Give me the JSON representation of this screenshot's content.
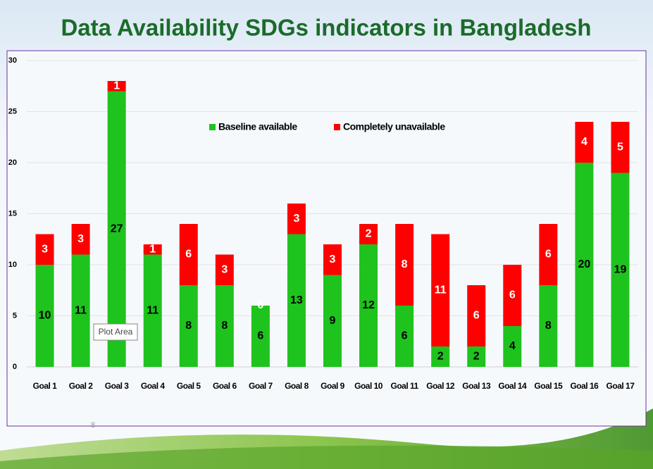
{
  "chart_data": {
    "type": "stacked_bar",
    "title": "Data Availability SDGs indicators in Bangladesh",
    "categories": [
      "Goal 1",
      "Goal 2",
      "Goal 3",
      "Goal 4",
      "Goal 5",
      "Goal 6",
      "Goal 7",
      "Goal 8",
      "Goal 9",
      "Goal 10",
      "Goal 11",
      "Goal 12",
      "Goal 13",
      "Goal 14",
      "Goal 15",
      "Goal 16",
      "Goal 17"
    ],
    "series": [
      {
        "name": "Baseline available",
        "color": "#1ec31e",
        "values": [
          10,
          11,
          27,
          11,
          8,
          8,
          6,
          13,
          9,
          12,
          6,
          2,
          2,
          4,
          8,
          20,
          19
        ]
      },
      {
        "name": "Completely unavailable",
        "color": "#ff0000",
        "values": [
          3,
          3,
          1,
          1,
          6,
          3,
          0,
          3,
          3,
          2,
          8,
          11,
          6,
          6,
          6,
          4,
          5
        ]
      }
    ],
    "ylim": [
      0,
      30
    ],
    "yticks": [
      0,
      5,
      10,
      15,
      20,
      25,
      30
    ],
    "grid": true,
    "legend": "top",
    "annotations": [
      "Plot Area",
      "8"
    ]
  }
}
